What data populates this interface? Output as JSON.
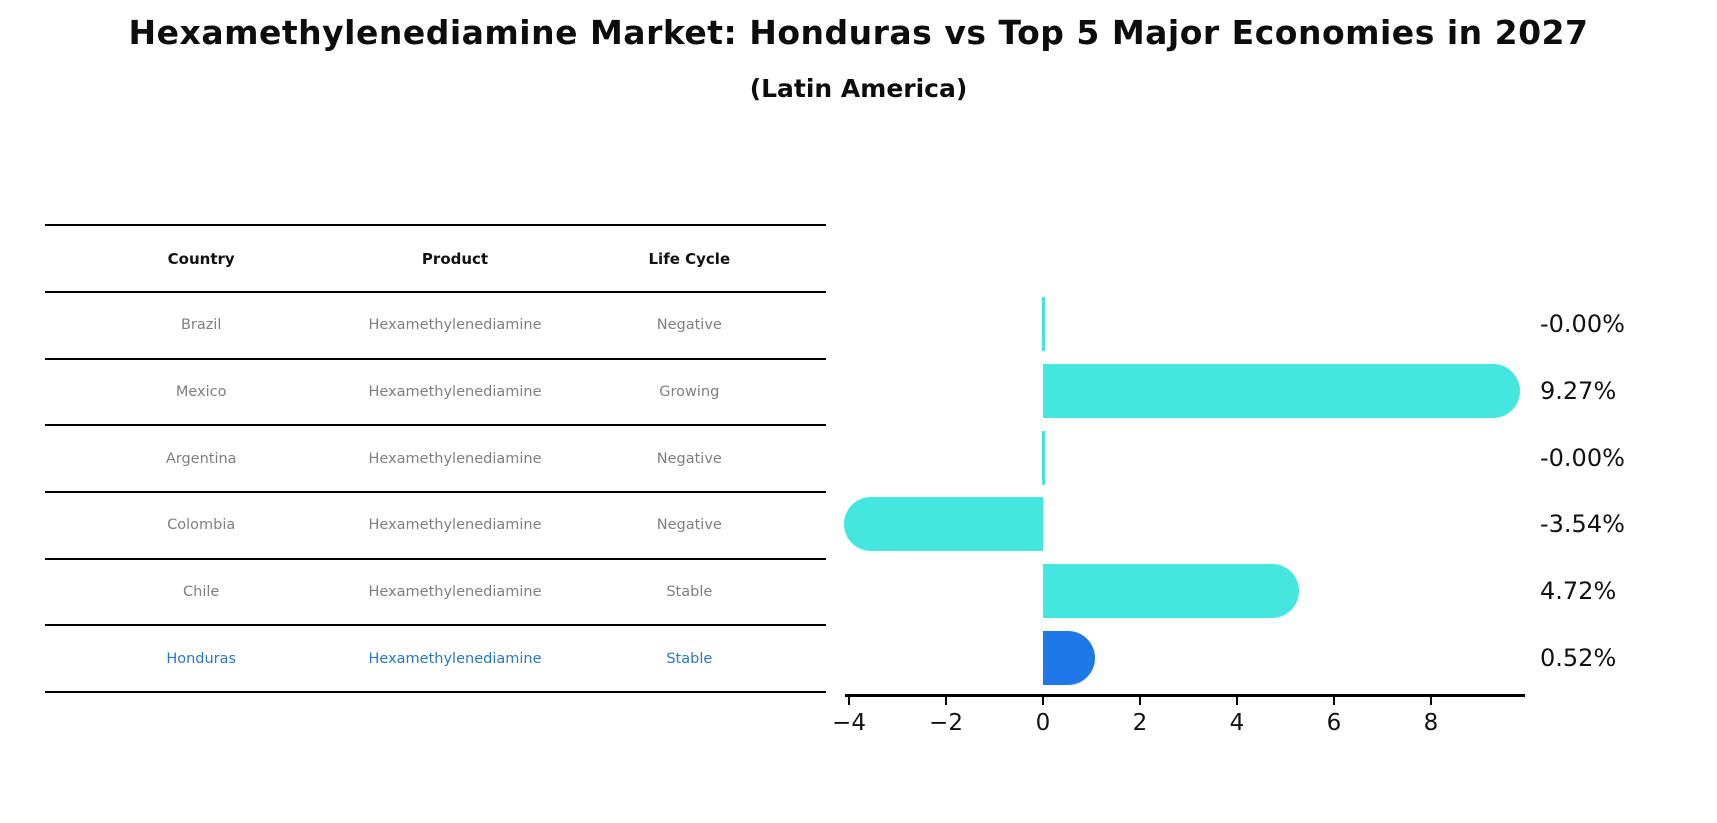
{
  "title": "Hexamethylenediamine Market: Honduras vs Top 5 Major Economies in 2027",
  "subtitle": "(Latin America)",
  "table": {
    "headers": [
      "Country",
      "Product",
      "Life Cycle"
    ],
    "rows": [
      {
        "country": "Brazil",
        "product": "Hexamethylenediamine",
        "life_cycle": "Negative"
      },
      {
        "country": "Mexico",
        "product": "Hexamethylenediamine",
        "life_cycle": "Growing"
      },
      {
        "country": "Argentina",
        "product": "Hexamethylenediamine",
        "life_cycle": "Negative"
      },
      {
        "country": "Colombia",
        "product": "Hexamethylenediamine",
        "life_cycle": "Negative"
      },
      {
        "country": "Chile",
        "product": "Hexamethylenediamine",
        "life_cycle": "Stable"
      },
      {
        "country": "Honduras",
        "product": "Hexamethylenediamine",
        "life_cycle": "Stable"
      }
    ],
    "highlight_row_index": 5,
    "highlight_text_color": "#2878C8"
  },
  "chart_data": {
    "type": "bar",
    "orientation": "horizontal",
    "categories": [
      "Brazil",
      "Mexico",
      "Argentina",
      "Colombia",
      "Chile",
      "Honduras"
    ],
    "values": [
      -0.0,
      9.27,
      -0.0,
      -3.54,
      4.72,
      0.52
    ],
    "value_labels": [
      "-0.00%",
      "9.27%",
      "-0.00%",
      "-3.54%",
      "4.72%",
      "0.52%"
    ],
    "xticks": [
      -4,
      -2,
      0,
      2,
      4,
      6,
      8
    ],
    "xtick_labels": [
      "−4",
      "−2",
      "0",
      "2",
      "4",
      "6",
      "8"
    ],
    "xlim": [
      -4.1,
      9.9
    ],
    "bar_color": "#45E6DF",
    "highlight_bar_color": "#1E78E8",
    "highlight_index": 5,
    "grid": false,
    "legend": false,
    "title": "Hexamethylenediamine Market: Honduras vs Top 5 Major Economies in 2027",
    "subtitle": "(Latin America)"
  }
}
